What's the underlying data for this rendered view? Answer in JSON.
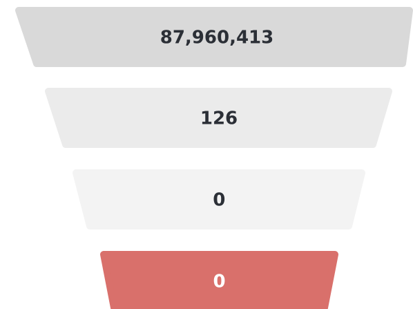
{
  "chart_data": {
    "type": "funnel",
    "values": [
      87960413,
      126,
      0,
      0
    ],
    "value_labels": [
      "87,960,413",
      "126",
      "0",
      "0"
    ],
    "colors": [
      "#d9d9d9",
      "#ebebeb",
      "#f3f3f3",
      "#d9706b"
    ]
  }
}
